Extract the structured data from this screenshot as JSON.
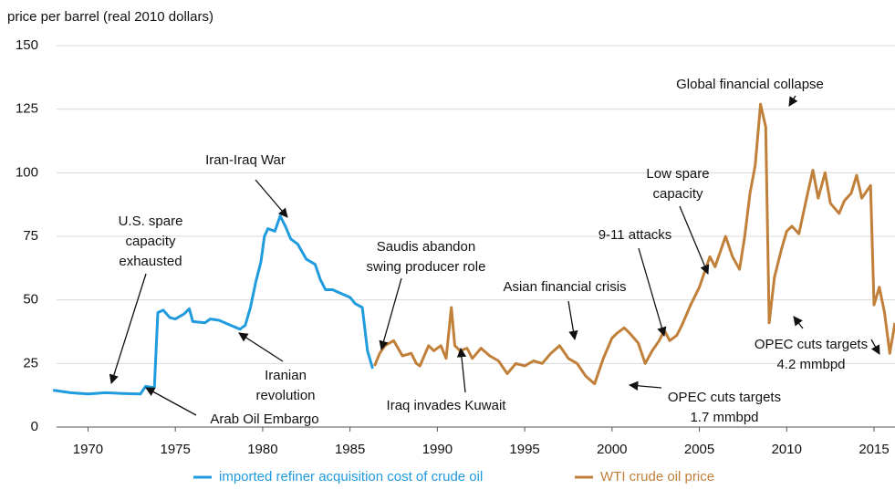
{
  "chart_data": {
    "type": "line",
    "y_label": "price per barrel (real 2010 dollars)",
    "xlim": [
      1968.2,
      2016.2
    ],
    "xticks": [
      1970,
      1975,
      1980,
      1985,
      1990,
      1995,
      2000,
      2005,
      2010,
      2015
    ],
    "ylim": [
      0,
      150
    ],
    "yticks": [
      0,
      25,
      50,
      75,
      100,
      125,
      150
    ],
    "grid": true,
    "legend": "bottom",
    "series": [
      {
        "name": "imported refiner acquisition cost of crude oil",
        "color": "#1f9bde",
        "x": [
          1968,
          1969,
          1970,
          1971,
          1972,
          1973,
          1973.3,
          1973.8,
          1974.0,
          1974.3,
          1974.7,
          1975,
          1975.5,
          1975.8,
          1976,
          1976.7,
          1977,
          1977.5,
          1978,
          1978.7,
          1979,
          1979.3,
          1979.6,
          1979.9,
          1980.1,
          1980.3,
          1980.7,
          1981.0,
          1981.3,
          1981.6,
          1982,
          1982.5,
          1983,
          1983.3,
          1983.6,
          1984,
          1984.5,
          1985,
          1985.3,
          1985.7,
          1986,
          1986.3
        ],
        "values": [
          14.5,
          13.5,
          13,
          13.5,
          13.2,
          13,
          16,
          15.5,
          45,
          46,
          43,
          42.5,
          44.5,
          46.5,
          41.5,
          41,
          42.5,
          42,
          40.5,
          38.5,
          40,
          47,
          57,
          65,
          75,
          78,
          77,
          83,
          79,
          74,
          72,
          66,
          64,
          58,
          54,
          54,
          52.5,
          51,
          48.5,
          47,
          30,
          23
        ]
      },
      {
        "name": "WTI crude oil price",
        "color": "#c0803a",
        "x": [
          1986.4,
          1986.7,
          1987,
          1987.5,
          1988,
          1988.5,
          1988.8,
          1989,
          1989.5,
          1989.8,
          1990.2,
          1990.5,
          1990.8,
          1991.0,
          1991.3,
          1991.7,
          1992,
          1992.5,
          1993,
          1993.5,
          1994,
          1994.5,
          1995,
          1995.5,
          1996,
          1996.5,
          1997,
          1997.5,
          1998,
          1998.5,
          1999,
          1999.5,
          2000,
          2000.3,
          2000.7,
          2001,
          2001.5,
          2001.9,
          2002.3,
          2002.7,
          2003,
          2003.3,
          2003.7,
          2004,
          2004.5,
          2005,
          2005.3,
          2005.6,
          2005.9,
          2006.5,
          2006.9,
          2007.3,
          2007.6,
          2007.9,
          2008.2,
          2008.5,
          2008.8,
          2009.0,
          2009.3,
          2009.7,
          2010,
          2010.3,
          2010.7,
          2011.2,
          2011.5,
          2011.8,
          2012.2,
          2012.5,
          2013,
          2013.3,
          2013.7,
          2014,
          2014.3,
          2014.8,
          2015.0,
          2015.3,
          2015.6,
          2015.9,
          2016.2
        ],
        "values": [
          24,
          29,
          32,
          34,
          28,
          29,
          25,
          24,
          32,
          30,
          32,
          27,
          47,
          32,
          30,
          31,
          27,
          31,
          28,
          26,
          21,
          25,
          24,
          26,
          25,
          29,
          32,
          27,
          25,
          20,
          17,
          27,
          35,
          37,
          39,
          37,
          33,
          25,
          30,
          34,
          38,
          34,
          36,
          40,
          48,
          55,
          61,
          67,
          63,
          75,
          67,
          62,
          75,
          92,
          103,
          127,
          118,
          41,
          59,
          70,
          77,
          79,
          76,
          92,
          101,
          90,
          100,
          88,
          84,
          89,
          92,
          99,
          90,
          95,
          48,
          55,
          45,
          29,
          41
        ]
      }
    ],
    "annotations": [
      [
        "U.S. spare",
        "capacity",
        "exhausted"
      ],
      [
        "Arab Oil Embargo"
      ],
      [
        "Iran-Iraq War"
      ],
      [
        "Iranian",
        "revolution"
      ],
      [
        "Saudis abandon",
        "swing producer role"
      ],
      [
        "Iraq invades Kuwait"
      ],
      [
        "Asian financial crisis"
      ],
      [
        "9-11 attacks"
      ],
      [
        "Low spare",
        "capacity"
      ],
      [
        "Global financial collapse"
      ],
      [
        "OPEC cuts targets",
        "1.7 mmbpd"
      ],
      [
        "OPEC cuts targets",
        "4.2 mmbpd"
      ]
    ]
  }
}
